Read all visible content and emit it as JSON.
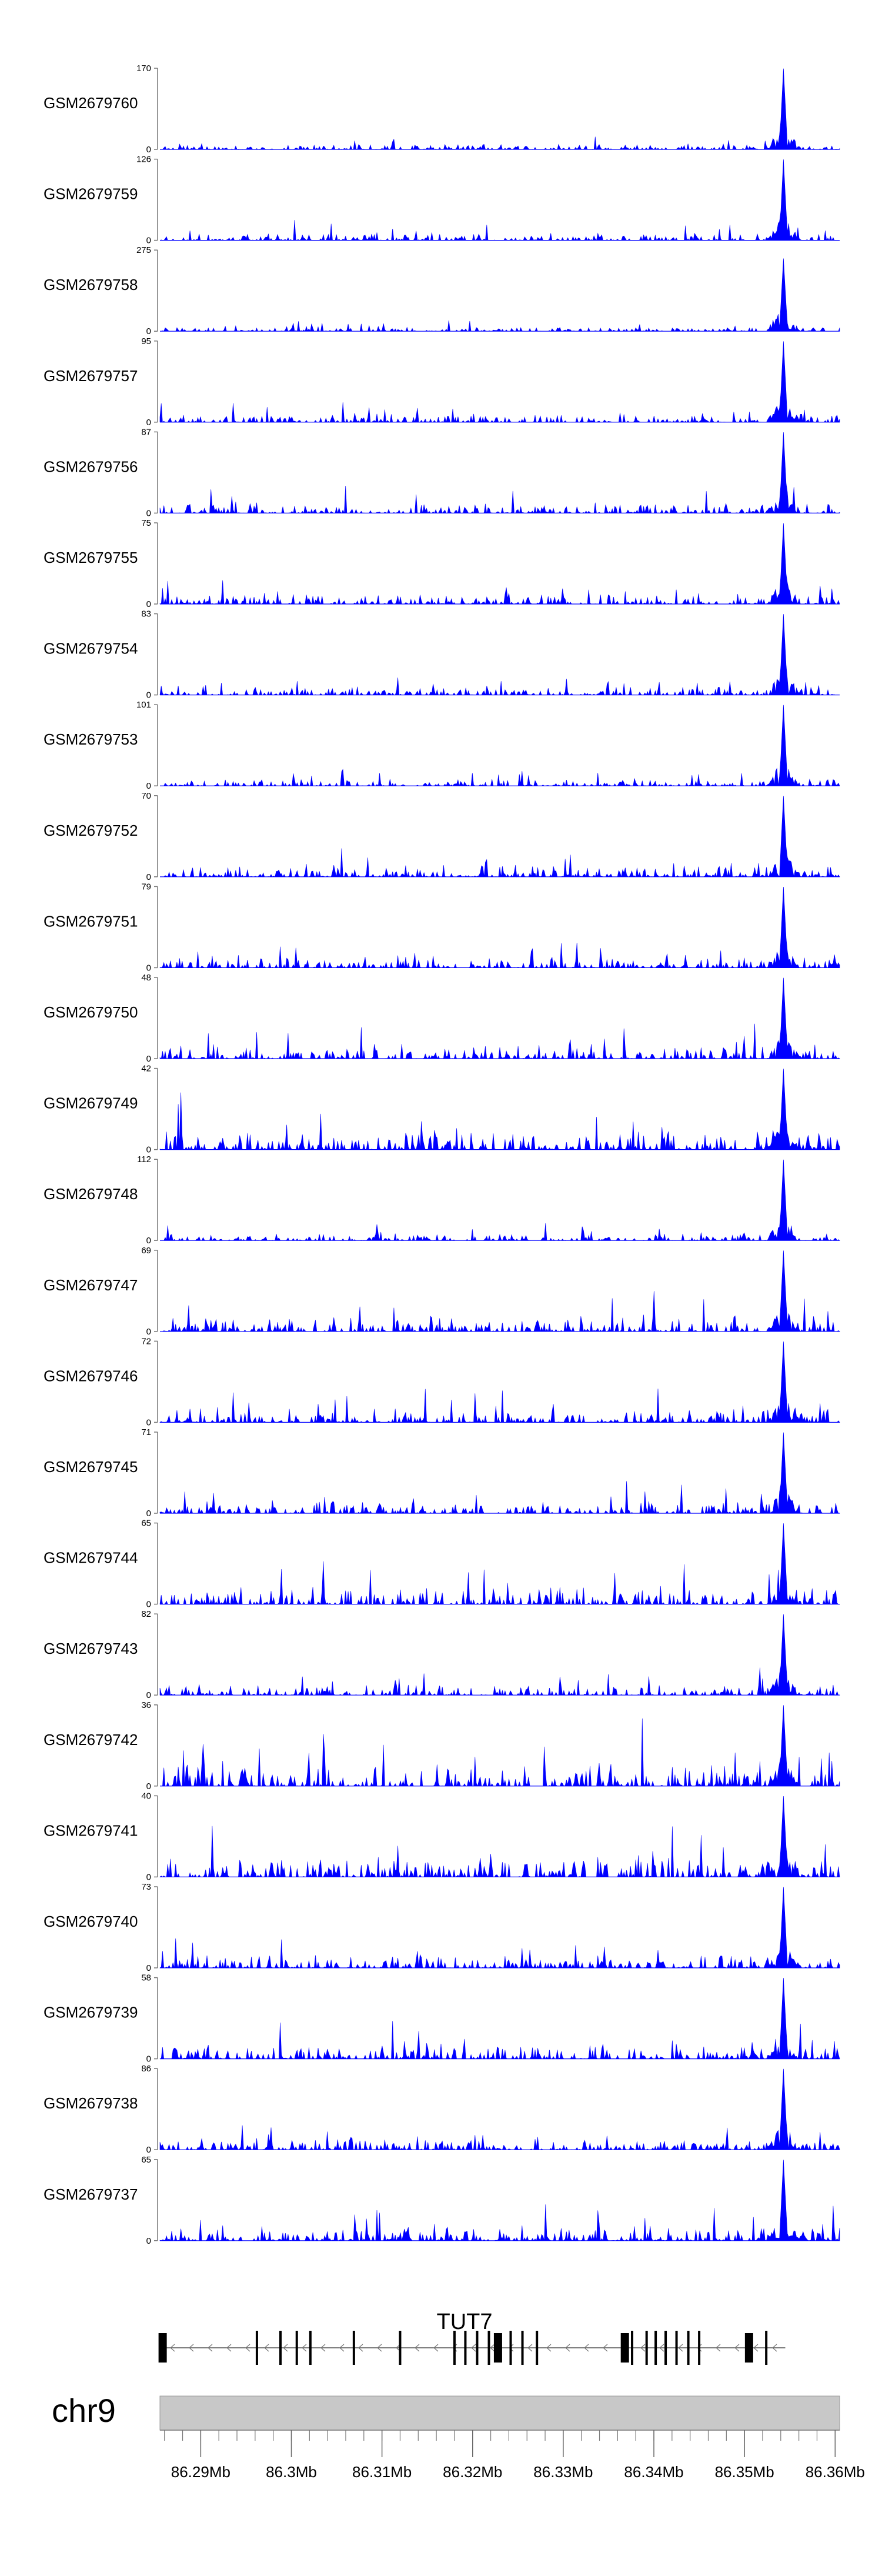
{
  "chart_data": {
    "type": "area",
    "title": "",
    "fill_color": "#0000ff",
    "x_range": [
      86.2855,
      86.3605
    ],
    "x_unit": "Mb",
    "tracks": [
      {
        "sample": "GSM2679760",
        "ymax": "170",
        "ymin": "0",
        "max": 170,
        "peak_rel": 1.0,
        "noise": 0.07,
        "seed": 11
      },
      {
        "sample": "GSM2679759",
        "ymax": "126",
        "ymin": "0",
        "max": 126,
        "peak_rel": 1.0,
        "noise": 0.1,
        "seed": 12
      },
      {
        "sample": "GSM2679758",
        "ymax": "275",
        "ymin": "0",
        "max": 275,
        "peak_rel": 0.9,
        "noise": 0.06,
        "seed": 13
      },
      {
        "sample": "GSM2679757",
        "ymax": "95",
        "ymin": "0",
        "max": 95,
        "peak_rel": 1.0,
        "noise": 0.12,
        "seed": 14
      },
      {
        "sample": "GSM2679756",
        "ymax": "87",
        "ymin": "0",
        "max": 87,
        "peak_rel": 1.0,
        "noise": 0.14,
        "seed": 15
      },
      {
        "sample": "GSM2679755",
        "ymax": "75",
        "ymin": "0",
        "max": 75,
        "peak_rel": 1.0,
        "noise": 0.14,
        "seed": 16
      },
      {
        "sample": "GSM2679754",
        "ymax": "83",
        "ymin": "0",
        "max": 83,
        "peak_rel": 1.0,
        "noise": 0.12,
        "seed": 17
      },
      {
        "sample": "GSM2679753",
        "ymax": "101",
        "ymin": "0",
        "max": 101,
        "peak_rel": 1.0,
        "noise": 0.1,
        "seed": 18
      },
      {
        "sample": "GSM2679752",
        "ymax": "70",
        "ymin": "0",
        "max": 70,
        "peak_rel": 1.0,
        "noise": 0.16,
        "seed": 19
      },
      {
        "sample": "GSM2679751",
        "ymax": "79",
        "ymin": "0",
        "max": 79,
        "peak_rel": 1.0,
        "noise": 0.16,
        "seed": 20
      },
      {
        "sample": "GSM2679750",
        "ymax": "48",
        "ymin": "0",
        "max": 48,
        "peak_rel": 1.0,
        "noise": 0.2,
        "seed": 21
      },
      {
        "sample": "GSM2679749",
        "ymax": "42",
        "ymin": "0",
        "max": 42,
        "peak_rel": 1.0,
        "noise": 0.3,
        "seed": 22
      },
      {
        "sample": "GSM2679748",
        "ymax": "112",
        "ymin": "0",
        "max": 112,
        "peak_rel": 1.0,
        "noise": 0.1,
        "seed": 23
      },
      {
        "sample": "GSM2679747",
        "ymax": "69",
        "ymin": "0",
        "max": 69,
        "peak_rel": 1.0,
        "noise": 0.2,
        "seed": 24
      },
      {
        "sample": "GSM2679746",
        "ymax": "72",
        "ymin": "0",
        "max": 72,
        "peak_rel": 1.0,
        "noise": 0.18,
        "seed": 25
      },
      {
        "sample": "GSM2679745",
        "ymax": "71",
        "ymin": "0",
        "max": 71,
        "peak_rel": 1.0,
        "noise": 0.18,
        "seed": 26
      },
      {
        "sample": "GSM2679744",
        "ymax": "65",
        "ymin": "0",
        "max": 65,
        "peak_rel": 1.0,
        "noise": 0.22,
        "seed": 27
      },
      {
        "sample": "GSM2679743",
        "ymax": "82",
        "ymin": "0",
        "max": 82,
        "peak_rel": 1.0,
        "noise": 0.14,
        "seed": 28
      },
      {
        "sample": "GSM2679742",
        "ymax": "36",
        "ymin": "0",
        "max": 36,
        "peak_rel": 1.0,
        "noise": 0.35,
        "seed": 29
      },
      {
        "sample": "GSM2679741",
        "ymax": "40",
        "ymin": "0",
        "max": 40,
        "peak_rel": 1.0,
        "noise": 0.3,
        "seed": 30
      },
      {
        "sample": "GSM2679740",
        "ymax": "73",
        "ymin": "0",
        "max": 73,
        "peak_rel": 1.0,
        "noise": 0.18,
        "seed": 31
      },
      {
        "sample": "GSM2679739",
        "ymax": "58",
        "ymin": "0",
        "max": 58,
        "peak_rel": 1.0,
        "noise": 0.22,
        "seed": 32
      },
      {
        "sample": "GSM2679738",
        "ymax": "86",
        "ymin": "0",
        "max": 86,
        "peak_rel": 1.0,
        "noise": 0.14,
        "seed": 33
      },
      {
        "sample": "GSM2679737",
        "ymax": "65",
        "ymin": "0",
        "max": 65,
        "peak_rel": 1.0,
        "noise": 0.2,
        "seed": 34
      }
    ],
    "gene": {
      "name": "TUT7",
      "strand": "-",
      "start_mb": 86.2855,
      "end_mb": 86.3545,
      "exons_mb": [
        86.2858,
        86.2962,
        86.2988,
        86.3006,
        86.3021,
        86.3069,
        86.312,
        86.318,
        86.3192,
        86.3205,
        86.3218,
        86.3228,
        86.3242,
        86.3255,
        86.3271,
        86.3368,
        86.3376,
        86.3392,
        86.3402,
        86.3413,
        86.3425,
        86.3438,
        86.345,
        86.3505,
        86.3524
      ]
    },
    "chromosome": "chr9",
    "ideogram_color": "#c8c8c8",
    "x_ticks": [
      {
        "value": 86.29,
        "label": "86.29Mb"
      },
      {
        "value": 86.3,
        "label": "86.3Mb"
      },
      {
        "value": 86.31,
        "label": "86.31Mb"
      },
      {
        "value": 86.32,
        "label": "86.32Mb"
      },
      {
        "value": 86.33,
        "label": "86.33Mb"
      },
      {
        "value": 86.34,
        "label": "86.34Mb"
      },
      {
        "value": 86.35,
        "label": "86.35Mb"
      },
      {
        "value": 86.36,
        "label": "86.36Mb"
      }
    ]
  }
}
